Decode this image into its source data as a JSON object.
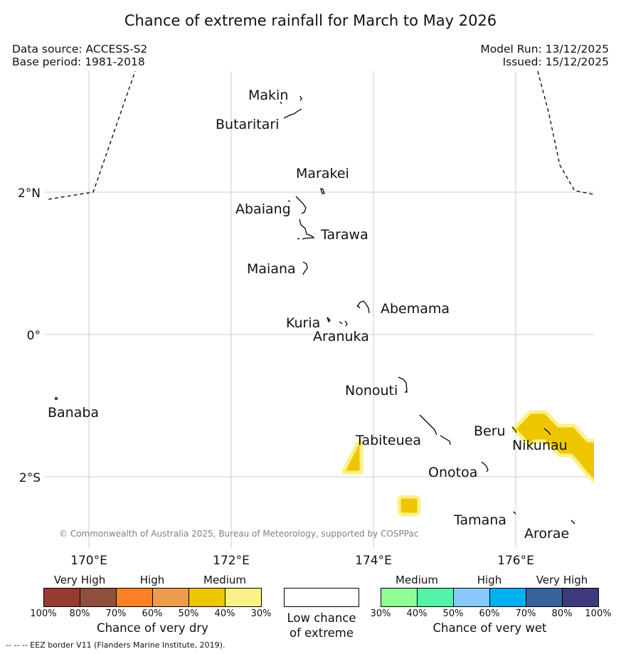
{
  "title": "Chance of extreme rainfall for March to May 2026",
  "meta": {
    "data_source": "Data source: ACCESS-S2",
    "base_period": "Base period: 1981-2018",
    "model_run": "Model Run: 13/12/2025",
    "issued": "Issued: 15/12/2025"
  },
  "map": {
    "lat_labels": [
      "2°N",
      "0°",
      "2°S"
    ],
    "lon_labels": [
      "170°E",
      "172°E",
      "174°E",
      "176°E"
    ],
    "islands": [
      "Makin",
      "Butaritari",
      "Marakei",
      "Abaiang",
      "Tarawa",
      "Maiana",
      "Abemama",
      "Kuria",
      "Aranuka",
      "Nonouti",
      "Banaba",
      "Tabiteuea",
      "Beru",
      "Nikunau",
      "Onotoa",
      "Tamana",
      "Arorae"
    ],
    "copyright": "© Commonwealth of Australia 2025, Bureau of Meteorology, supported by COSPPac",
    "colors": {
      "dry_medium": "#eec600",
      "dry_medium_light": "#fbf18a",
      "eez": "#000000",
      "grid": "#cccccc"
    }
  },
  "legend": {
    "dry": {
      "categories": [
        "Very High",
        "High",
        "Medium"
      ],
      "colors": [
        "#943c30",
        "#8f4f3f",
        "#ff8126",
        "#ec9a4d",
        "#eec600",
        "#fbf18a"
      ],
      "ticks": [
        "100%",
        "80%",
        "70%",
        "60%",
        "50%",
        "40%",
        "30%"
      ],
      "caption": "Chance of very dry"
    },
    "low": {
      "caption_line1": "Low chance",
      "caption_line2": "of extreme"
    },
    "wet": {
      "categories": [
        "Medium",
        "High",
        "Very High"
      ],
      "colors": [
        "#92fc94",
        "#53f4a7",
        "#88c8fb",
        "#00b1ef",
        "#3a639d",
        "#3e3a7d"
      ],
      "ticks": [
        "30%",
        "40%",
        "50%",
        "60%",
        "70%",
        "80%",
        "100%"
      ],
      "caption": "Chance of very wet"
    }
  },
  "footnote": "--  --  -- EEZ border V11 (Flanders Marine Institute, 2019)."
}
